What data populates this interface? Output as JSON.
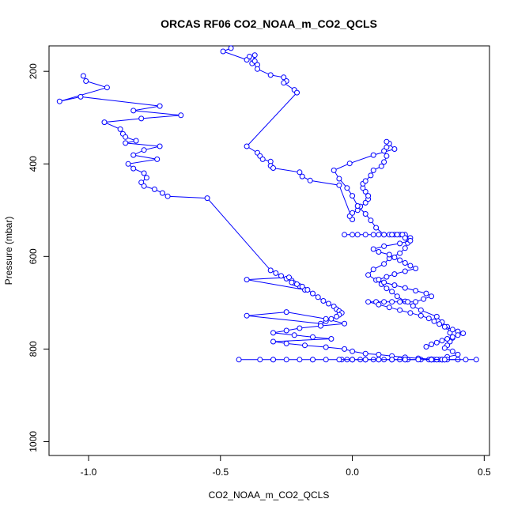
{
  "chart_data": {
    "type": "scatter",
    "title": "ORCAS RF06 CO2_NOAA_m_CO2_QCLS",
    "xlabel": "CO2_NOAA_m_CO2_QCLS",
    "ylabel": "Pressure (mbar)",
    "xlim": [
      -1.15,
      0.52
    ],
    "ylim": [
      1030,
      145
    ],
    "y_reversed": true,
    "x_ticks": [
      -1.0,
      -0.5,
      0.0,
      0.5
    ],
    "x_tick_labels": [
      "-1.0",
      "-0.5",
      "0.0",
      "0.5"
    ],
    "y_ticks": [
      200,
      400,
      600,
      800,
      1000
    ],
    "y_tick_labels": [
      "200",
      "400",
      "600",
      "800",
      "1000"
    ],
    "grid": false,
    "legend": "none",
    "marker": "open-circle",
    "connected": true,
    "color": "#0000ff",
    "series": [
      {
        "x": [
          -0.46,
          -0.49,
          -0.4,
          -0.39,
          -0.38,
          -0.37,
          -0.37,
          -0.36,
          -0.36,
          -0.31,
          -0.26,
          -0.25,
          -0.26,
          -0.22,
          -0.21,
          -0.4,
          -0.36,
          -0.35,
          -0.34,
          -0.31,
          -0.31,
          -0.3,
          -0.2,
          -0.19,
          -0.16,
          -0.05,
          0.0,
          -0.01,
          0.0,
          0.02,
          0.03,
          0.05,
          0.06,
          0.06,
          0.05,
          0.04,
          0.04,
          0.05,
          0.07,
          0.08,
          0.11,
          0.12,
          0.13,
          0.12,
          0.13,
          0.14,
          0.13,
          0.16,
          0.08,
          -0.01,
          -0.07,
          -0.05,
          -0.02,
          0.0,
          0.02,
          0.05,
          0.07,
          0.09,
          0.12,
          0.16,
          0.18,
          0.2,
          0.22,
          0.21,
          0.2,
          0.18,
          0.14,
          0.12,
          0.08,
          0.06,
          0.09,
          0.11,
          0.13,
          0.15,
          0.17,
          0.2,
          0.23,
          0.26,
          0.32,
          0.34,
          0.36,
          0.37,
          0.38,
          0.37,
          0.36,
          0.35,
          0.38,
          0.4,
          0.36,
          0.32,
          0.33,
          0.34,
          0.35,
          0.34,
          0.31,
          0.29,
          0.3,
          0.32,
          0.35,
          0.4,
          0.36,
          0.3,
          0.26,
          0.21,
          0.18,
          0.15,
          0.12,
          0.1,
          0.08,
          0.05,
          0.03,
          0.0,
          -0.02,
          -0.04
        ],
        "y": [
          150,
          157,
          175,
          168,
          183,
          165,
          178,
          186,
          195,
          208,
          213,
          221,
          225,
          240,
          246,
          362,
          376,
          383,
          390,
          395,
          404,
          409,
          418,
          427,
          436,
          446,
          520,
          513,
          506,
          500,
          492,
          484,
          476,
          469,
          460,
          452,
          443,
          437,
          425,
          414,
          405,
          396,
          383,
          372,
          364,
          356,
          352,
          368,
          381,
          399,
          414,
          432,
          452,
          469,
          491,
          508,
          522,
          538,
          553,
          553,
          553,
          553,
          560,
          571,
          582,
          593,
          604,
          616,
          628,
          640,
          651,
          660,
          669,
          676,
          686,
          697,
          707,
          716,
          730,
          742,
          752,
          765,
          776,
          784,
          792,
          798,
          805,
          812,
          817,
          823,
          823,
          823,
          823,
          823,
          823,
          823,
          823,
          823,
          823,
          823,
          823,
          823,
          823,
          823,
          823,
          823,
          823,
          823,
          823,
          823,
          823,
          823,
          823,
          823
        ]
      },
      {
        "x": [
          -1.02,
          -1.01,
          -0.93,
          -1.11,
          -1.03,
          -0.73,
          -0.83,
          -0.65,
          -0.8,
          -0.94,
          -0.88,
          -0.87,
          -0.86,
          -0.82,
          -0.86,
          -0.73,
          -0.79,
          -0.83,
          -0.74,
          -0.85,
          -0.83,
          -0.79,
          -0.78,
          -0.8,
          -0.79,
          -0.75,
          -0.72,
          -0.7,
          -0.55,
          -0.31,
          -0.29,
          -0.27,
          -0.25,
          -0.23,
          -0.22,
          -0.2,
          -0.18,
          -0.4,
          -0.24,
          -0.23,
          -0.21,
          -0.19,
          -0.17,
          -0.15,
          -0.13,
          -0.11,
          -0.09,
          -0.07,
          -0.06,
          -0.05,
          -0.04,
          -0.05,
          -0.06,
          -0.08,
          -0.1,
          -0.12,
          -0.4,
          -0.25,
          -0.1,
          -0.03,
          -0.12,
          -0.2,
          -0.25,
          -0.3,
          -0.22,
          -0.15,
          -0.08,
          -0.3,
          -0.25,
          -0.18,
          -0.1,
          -0.03,
          0.0,
          0.05,
          0.1,
          0.15,
          0.2,
          0.25,
          0.3,
          0.34,
          0.3,
          0.25,
          0.2,
          0.15,
          0.1,
          0.05,
          0.0,
          -0.05,
          -0.1,
          -0.15,
          -0.2,
          -0.25,
          -0.3,
          -0.35,
          -0.43,
          -0.3,
          -0.15,
          0.0,
          0.15,
          0.3,
          0.43,
          0.47,
          0.35,
          0.2,
          0.05
        ],
        "y": [
          210,
          221,
          235,
          265,
          255,
          275,
          285,
          295,
          302,
          310,
          325,
          335,
          342,
          350,
          355,
          362,
          370,
          381,
          390,
          400,
          410,
          420,
          430,
          440,
          448,
          455,
          463,
          470,
          474,
          630,
          636,
          642,
          648,
          652,
          658,
          664,
          672,
          650,
          645,
          656,
          660,
          665,
          672,
          680,
          688,
          696,
          702,
          708,
          714,
          718,
          722,
          726,
          730,
          735,
          740,
          745,
          728,
          720,
          735,
          745,
          750,
          755,
          760,
          765,
          770,
          774,
          778,
          784,
          788,
          792,
          796,
          800,
          805,
          810,
          812,
          815,
          818,
          820,
          822,
          823,
          823,
          823,
          823,
          823,
          823,
          823,
          823,
          823,
          823,
          823,
          823,
          823,
          823,
          823,
          823,
          823,
          823,
          823,
          823,
          823,
          823,
          823,
          823,
          823,
          823
        ]
      },
      {
        "x": [
          -0.03,
          0.0,
          0.02,
          0.05,
          0.08,
          0.1,
          0.12,
          0.14,
          0.15,
          0.17,
          0.19,
          0.2,
          0.22,
          0.18,
          0.12,
          0.08,
          0.1,
          0.14,
          0.16,
          0.18,
          0.2,
          0.22,
          0.24,
          0.2,
          0.16,
          0.13,
          0.1,
          0.12,
          0.16,
          0.2,
          0.24,
          0.28,
          0.3,
          0.27,
          0.24,
          0.21,
          0.18,
          0.15,
          0.12,
          0.09,
          0.06,
          0.1,
          0.14,
          0.18,
          0.22,
          0.26,
          0.29,
          0.31,
          0.33,
          0.35,
          0.38,
          0.4,
          0.42,
          0.4,
          0.38,
          0.36,
          0.34,
          0.32,
          0.3,
          0.28
        ],
        "y": [
          553,
          553,
          553,
          553,
          553,
          553,
          553,
          553,
          553,
          553,
          553,
          560,
          566,
          572,
          578,
          584,
          590,
          596,
          602,
          608,
          614,
          620,
          626,
          632,
          638,
          644,
          650,
          656,
          662,
          668,
          674,
          680,
          686,
          692,
          698,
          698,
          698,
          698,
          698,
          698,
          698,
          704,
          710,
          716,
          722,
          728,
          734,
          740,
          746,
          752,
          758,
          762,
          766,
          770,
          774,
          778,
          782,
          786,
          790,
          795
        ]
      }
    ]
  }
}
